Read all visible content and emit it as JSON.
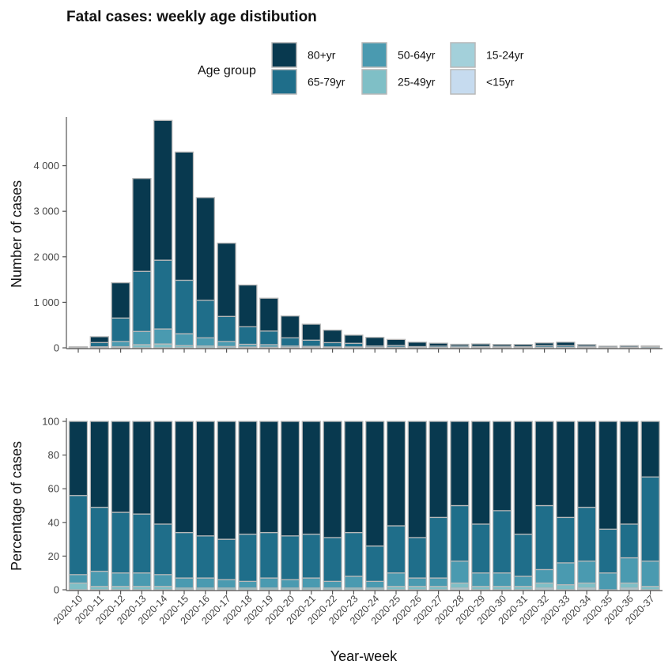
{
  "chart_data": [
    {
      "type": "bar",
      "stacked": true,
      "title": "Fatal cases: weekly age distibution",
      "ylabel": "Number of cases",
      "xlabel": "",
      "ylim": [
        0,
        5000
      ],
      "yticks": [
        0,
        1000,
        2000,
        3000,
        4000
      ],
      "ytick_labels": [
        "0",
        "1 000",
        "2 000",
        "3 000",
        "4 000"
      ],
      "grid": false,
      "legend": {
        "title": "Age group",
        "placement": "top",
        "entries": [
          "80+yr",
          "65-79yr",
          "50-64yr",
          "25-49yr",
          "15-24yr",
          "<15yr"
        ]
      },
      "categories": [
        "2020-10",
        "2020-11",
        "2020-12",
        "2020-13",
        "2020-14",
        "2020-15",
        "2020-16",
        "2020-17",
        "2020-18",
        "2020-19",
        "2020-20",
        "2020-21",
        "2020-22",
        "2020-23",
        "2020-24",
        "2020-25",
        "2020-26",
        "2020-27",
        "2020-28",
        "2020-29",
        "2020-30",
        "2020-31",
        "2020-32",
        "2020-33",
        "2020-34",
        "2020-35",
        "2020-36",
        "2020-37"
      ],
      "series": [
        {
          "name": "<15yr",
          "color": "#c6dbef",
          "values": [
            0,
            0,
            0,
            0,
            0,
            0,
            0,
            0,
            0,
            0,
            0,
            0,
            0,
            0,
            0,
            0,
            0,
            0,
            0,
            0,
            0,
            0,
            0,
            0,
            0,
            0,
            0,
            0
          ]
        },
        {
          "name": "15-24yr",
          "color": "#a3d0da",
          "values": [
            0,
            0,
            0,
            0,
            0,
            0,
            0,
            0,
            0,
            0,
            0,
            0,
            0,
            0,
            0,
            0,
            0,
            0,
            0,
            0,
            0,
            0,
            1,
            0,
            1,
            0,
            1,
            0
          ]
        },
        {
          "name": "25-49yr",
          "color": "#7fbfc6",
          "values": [
            1,
            4,
            25,
            70,
            85,
            50,
            40,
            30,
            18,
            15,
            10,
            8,
            5,
            4,
            3,
            3,
            2,
            2,
            2,
            1,
            2,
            1,
            2,
            2,
            2,
            0,
            1,
            0
          ]
        },
        {
          "name": "50-64yr",
          "color": "#4a9ab0",
          "values": [
            2,
            20,
            115,
            290,
            330,
            260,
            180,
            110,
            60,
            55,
            30,
            26,
            15,
            16,
            7,
            10,
            5,
            5,
            8,
            6,
            6,
            4,
            10,
            10,
            6,
            4,
            6,
            4
          ]
        },
        {
          "name": "65-79yr",
          "color": "#1f6e8a",
          "values": [
            10,
            93,
            515,
            1320,
            1510,
            1175,
            825,
            550,
            385,
            300,
            180,
            135,
            95,
            80,
            30,
            40,
            20,
            30,
            28,
            24,
            25,
            21,
            35,
            35,
            25,
            10,
            10,
            25
          ]
        },
        {
          "name": "80+yr",
          "color": "#08394f",
          "values": [
            10,
            128,
            775,
            2040,
            3070,
            2815,
            2255,
            1610,
            917,
            720,
            480,
            351,
            275,
            180,
            190,
            132,
            98,
            66,
            40,
            55,
            42,
            48,
            61,
            78,
            38,
            25,
            30,
            15
          ]
        }
      ]
    },
    {
      "type": "bar",
      "stacked": true,
      "ylabel": "Percentage of cases",
      "xlabel": "Year-week",
      "ylim": [
        0,
        100
      ],
      "yticks": [
        0,
        20,
        40,
        60,
        80,
        100
      ],
      "ytick_labels": [
        "0",
        "20",
        "40",
        "60",
        "80",
        "100"
      ],
      "grid": false,
      "categories": [
        "2020-10",
        "2020-11",
        "2020-12",
        "2020-13",
        "2020-14",
        "2020-15",
        "2020-16",
        "2020-17",
        "2020-18",
        "2020-19",
        "2020-20",
        "2020-21",
        "2020-22",
        "2020-23",
        "2020-24",
        "2020-25",
        "2020-26",
        "2020-27",
        "2020-28",
        "2020-29",
        "2020-30",
        "2020-31",
        "2020-32",
        "2020-33",
        "2020-34",
        "2020-35",
        "2020-36",
        "2020-37"
      ],
      "series": [
        {
          "name": "<15yr",
          "color": "#c6dbef",
          "values": [
            0,
            0,
            0,
            0,
            0,
            0,
            0,
            0,
            0,
            0,
            0,
            0,
            0,
            0,
            0,
            0,
            0,
            0,
            0,
            0,
            0,
            0,
            0,
            0,
            0,
            0,
            0,
            0
          ]
        },
        {
          "name": "15-24yr",
          "color": "#a3d0da",
          "values": [
            0,
            0,
            0,
            0,
            0,
            0,
            0,
            0,
            0,
            0,
            0,
            0,
            0,
            0,
            0,
            0,
            0,
            0,
            1,
            0,
            0,
            0,
            1,
            0,
            1,
            0,
            1,
            0
          ]
        },
        {
          "name": "25-49yr",
          "color": "#7fbfc6",
          "values": [
            4,
            2,
            2,
            2,
            2,
            1,
            1,
            1,
            1,
            1,
            1,
            1,
            1,
            1,
            1,
            2,
            2,
            2,
            3,
            2,
            2,
            2,
            3,
            3,
            3,
            0,
            3,
            2
          ]
        },
        {
          "name": "50-64yr",
          "color": "#4a9ab0",
          "values": [
            5,
            9,
            8,
            8,
            7,
            6,
            6,
            5,
            4,
            6,
            5,
            6,
            4,
            7,
            4,
            8,
            5,
            5,
            13,
            8,
            8,
            6,
            8,
            13,
            13,
            10,
            15,
            15
          ]
        },
        {
          "name": "65-79yr",
          "color": "#1f6e8a",
          "values": [
            47,
            38,
            36,
            35,
            30,
            27,
            25,
            24,
            28,
            27,
            26,
            26,
            26,
            26,
            21,
            28,
            24,
            36,
            33,
            29,
            37,
            25,
            38,
            27,
            32,
            26,
            20,
            50
          ]
        },
        {
          "name": "80+yr",
          "color": "#08394f",
          "values": [
            44,
            51,
            54,
            55,
            61,
            66,
            68,
            70,
            67,
            66,
            68,
            67,
            69,
            66,
            74,
            62,
            69,
            57,
            50,
            61,
            53,
            67,
            50,
            57,
            51,
            64,
            61,
            33
          ]
        }
      ]
    }
  ]
}
